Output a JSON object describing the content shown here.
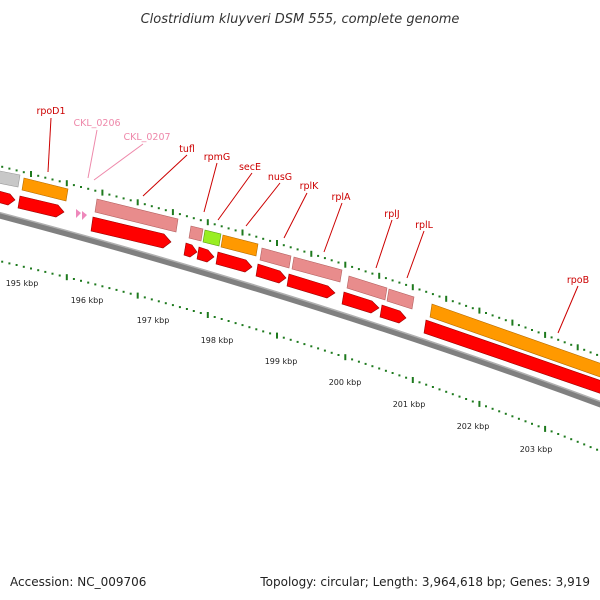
{
  "title": "Clostridium kluyveri DSM 555, complete genome",
  "accession": "Accession: NC_009706",
  "topology": "Topology: circular; Length: 3,964,618 bp; Genes: 3,919",
  "colors": {
    "rRNA_gray": "#c8c8c8",
    "orange": "#ff9900",
    "pink_band": "#e88c8c",
    "red_cds": "#ff0000",
    "green": "#99ee22",
    "backbone": "#808080",
    "tick": "#1e7a1e",
    "label_red": "#cc0000",
    "label_pink": "#ee88aa"
  },
  "kbp_labels": [
    "195 kbp",
    "196 kbp",
    "197 kbp",
    "198 kbp",
    "199 kbp",
    "200 kbp",
    "201 kbp",
    "202 kbp",
    "203 kbp"
  ],
  "gene_labels": [
    {
      "name": "rpoD1",
      "kind": "red"
    },
    {
      "name": "CKL_0206",
      "kind": "pink"
    },
    {
      "name": "CKL_0207",
      "kind": "pink"
    },
    {
      "name": "tufl",
      "kind": "red"
    },
    {
      "name": "rpmG",
      "kind": "red"
    },
    {
      "name": "secE",
      "kind": "red"
    },
    {
      "name": "nusG",
      "kind": "red"
    },
    {
      "name": "rplK",
      "kind": "red"
    },
    {
      "name": "rplA",
      "kind": "red"
    },
    {
      "name": "rplJ",
      "kind": "red"
    },
    {
      "name": "rplL",
      "kind": "red"
    },
    {
      "name": "rpoB",
      "kind": "red"
    }
  ]
}
